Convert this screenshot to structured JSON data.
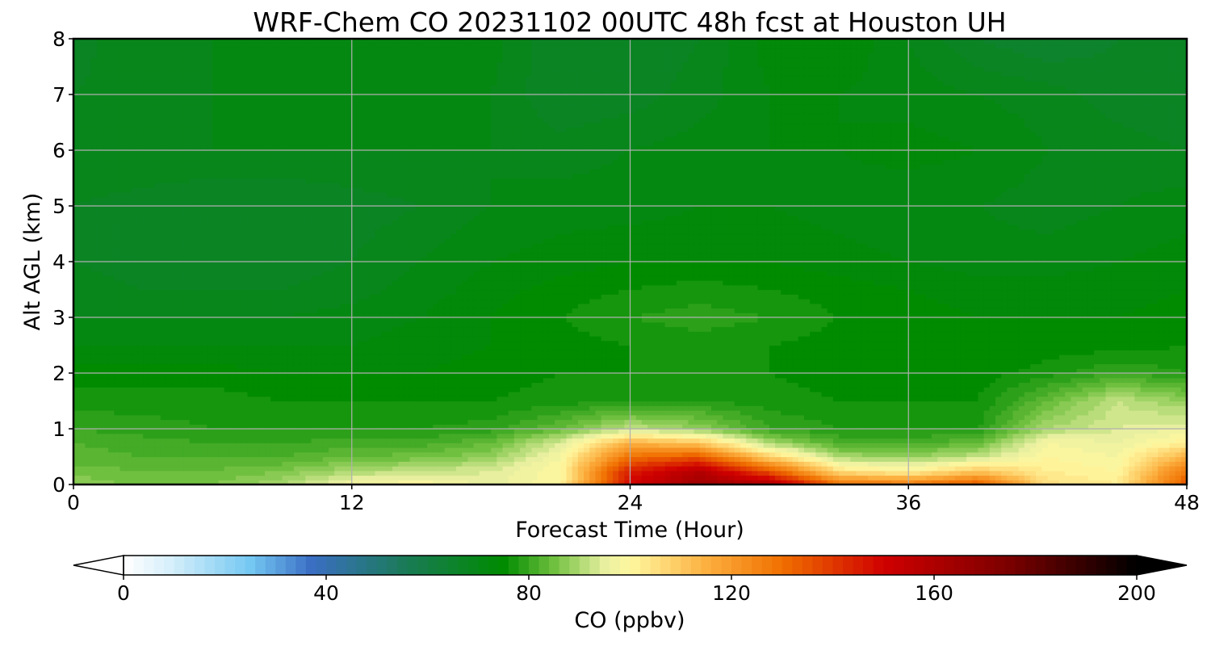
{
  "chart_data": {
    "type": "heatmap",
    "title": "WRF-Chem CO  20231102 00UTC 48h fcst at Houston UH",
    "xlabel": "Forecast Time (Hour)",
    "ylabel": "Alt AGL (km)",
    "xlim": [
      0,
      48
    ],
    "ylim": [
      0,
      8
    ],
    "x_ticks": [
      0,
      12,
      24,
      36,
      48
    ],
    "y_ticks": [
      0,
      1,
      2,
      3,
      4,
      5,
      6,
      7,
      8
    ],
    "grid": true,
    "x": [
      0,
      3,
      6,
      9,
      12,
      15,
      18,
      21,
      24,
      27,
      30,
      33,
      36,
      39,
      42,
      45,
      48
    ],
    "y": [
      0,
      0.25,
      0.5,
      0.75,
      1,
      1.5,
      2,
      2.5,
      3,
      3.5,
      4,
      5,
      6,
      7,
      8
    ],
    "z": [
      [
        88,
        85,
        86,
        90,
        98,
        100,
        95,
        100,
        150,
        165,
        160,
        130,
        128,
        135,
        105,
        102,
        135
      ],
      [
        85,
        84,
        84,
        86,
        90,
        92,
        94,
        100,
        145,
        158,
        135,
        105,
        100,
        110,
        102,
        100,
        128
      ],
      [
        83,
        82,
        82,
        82,
        84,
        85,
        88,
        98,
        130,
        135,
        108,
        90,
        88,
        92,
        100,
        98,
        115
      ],
      [
        82,
        81,
        80,
        80,
        81,
        81,
        84,
        94,
        115,
        110,
        90,
        82,
        81,
        84,
        98,
        96,
        102
      ],
      [
        80,
        79,
        78,
        78,
        78,
        78,
        79,
        84,
        92,
        88,
        80,
        78,
        78,
        78,
        90,
        94,
        96
      ],
      [
        77,
        77,
        77,
        76,
        76,
        76,
        76,
        77,
        78,
        78,
        77,
        76,
        76,
        76,
        84,
        92,
        88
      ],
      [
        75,
        75,
        75,
        74,
        74,
        74,
        75,
        76,
        76,
        76,
        76,
        75,
        75,
        75,
        77,
        80,
        78
      ],
      [
        72,
        72,
        72,
        72,
        72,
        73,
        74,
        75,
        76,
        77,
        76,
        75,
        74,
        74,
        75,
        75,
        76
      ],
      [
        70,
        70,
        70,
        70,
        71,
        72,
        74,
        76,
        78,
        79,
        78,
        76,
        75,
        74,
        74,
        74,
        75
      ],
      [
        69,
        68,
        68,
        68,
        69,
        71,
        73,
        75,
        76,
        77,
        76,
        75,
        74,
        73,
        73,
        73,
        74
      ],
      [
        68,
        67,
        67,
        67,
        68,
        70,
        72,
        73,
        74,
        74,
        74,
        73,
        72,
        71,
        71,
        72,
        73
      ],
      [
        68,
        67,
        66,
        66,
        67,
        68,
        70,
        71,
        71,
        72,
        72,
        71,
        70,
        70,
        69,
        70,
        71
      ],
      [
        70,
        70,
        70,
        70,
        70,
        70,
        70,
        69,
        70,
        71,
        72,
        72,
        73,
        72,
        70,
        69,
        68
      ],
      [
        68,
        69,
        70,
        70,
        70,
        70,
        70,
        66,
        67,
        69,
        72,
        72,
        71,
        70,
        69,
        67,
        66
      ],
      [
        67,
        70,
        70,
        71,
        71,
        71,
        71,
        66,
        66,
        68,
        73,
        74,
        70,
        66,
        64,
        66,
        68
      ]
    ],
    "colorbar": {
      "label": "CO  (ppbv)",
      "min": 0,
      "max": 200,
      "ticks": [
        0,
        40,
        80,
        120,
        160,
        200
      ],
      "extend": "both",
      "levels": 100,
      "colors": [
        "#ffffff",
        "#d2eefa",
        "#74c8f2",
        "#3b6fc4",
        "#1b7a5a",
        "#008b00",
        "#70c040",
        "#e8f0a0",
        "#fff8a0",
        "#fcb040",
        "#f07000",
        "#d00000",
        "#7a0000",
        "#000000"
      ],
      "color_stops": [
        0,
        10,
        25,
        37,
        55,
        75,
        85,
        95,
        100,
        115,
        130,
        150,
        175,
        200
      ]
    }
  }
}
